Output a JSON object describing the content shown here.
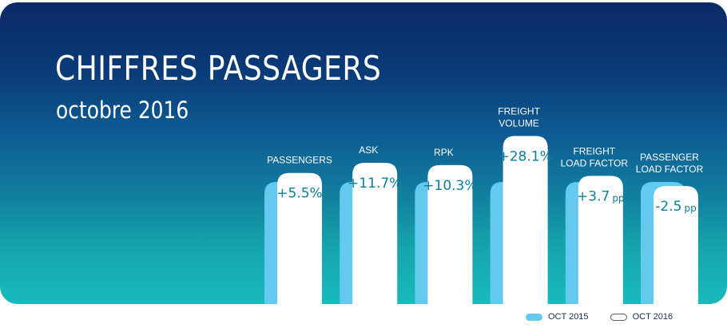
{
  "header": {
    "title": "CHIFFRES PASSAGERS",
    "subtitle": "octobre 2016"
  },
  "colors": {
    "previous": "#63c9ef",
    "current": "#ffffff",
    "value_text": "#0e7f9a",
    "background_top": "#0b2a66",
    "background_bottom": "#18babd"
  },
  "chart_data": {
    "type": "bar",
    "categories": [
      [
        "PASSENGERS"
      ],
      [
        "ASK"
      ],
      [
        "RPK"
      ],
      [
        "FREIGHT",
        "VOLUME"
      ],
      [
        "FREIGHT",
        "LOAD FACTOR"
      ],
      [
        "PASSENGER",
        "LOAD FACTOR"
      ]
    ],
    "value_labels": [
      {
        "value": "+5.5%",
        "unit": ""
      },
      {
        "value": "+11.7%",
        "unit": ""
      },
      {
        "value": "+10.3%",
        "unit": ""
      },
      {
        "value": "+28.1%",
        "unit": ""
      },
      {
        "value": "+3.7",
        "unit": "pp"
      },
      {
        "value": "-2.5",
        "unit": "pp"
      }
    ],
    "changes": [
      5.5,
      11.7,
      10.3,
      28.1,
      3.7,
      -2.5
    ],
    "series": [
      {
        "name": "OCT 2015",
        "values": [
          100,
          100,
          100,
          100,
          100,
          100
        ]
      },
      {
        "name": "OCT 2016",
        "values": [
          105.5,
          111.7,
          110.3,
          128.1,
          103.7,
          97.5
        ]
      }
    ],
    "legend_position": "bottom-right",
    "grid": false
  },
  "legend": {
    "items": [
      {
        "label": "OCT 2015"
      },
      {
        "label": "OCT 2016"
      }
    ]
  }
}
